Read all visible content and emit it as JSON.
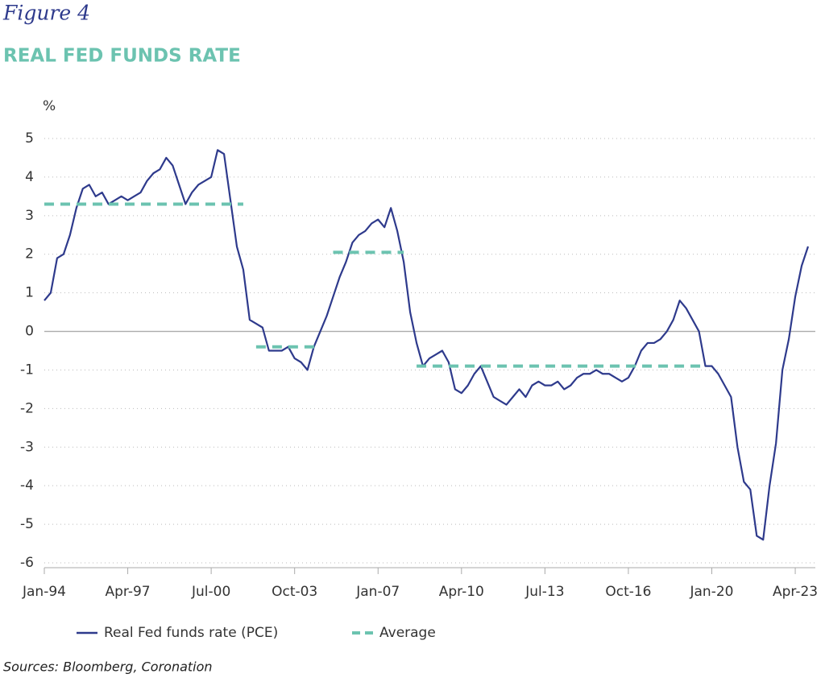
{
  "figure_label": "Figure 4",
  "chart_data": {
    "type": "line",
    "title": "REAL FED FUNDS RATE",
    "y_label": "%",
    "source": "Sources: Bloomberg, Coronation",
    "x": [
      "Jan-94",
      "Apr-94",
      "Jul-94",
      "Oct-94",
      "Jan-95",
      "Apr-95",
      "Jul-95",
      "Oct-95",
      "Jan-96",
      "Apr-96",
      "Jul-96",
      "Oct-96",
      "Jan-97",
      "Apr-97",
      "Jul-97",
      "Oct-97",
      "Jan-98",
      "Apr-98",
      "Jul-98",
      "Oct-98",
      "Jan-99",
      "Apr-99",
      "Jul-99",
      "Oct-99",
      "Jan-00",
      "Apr-00",
      "Jul-00",
      "Oct-00",
      "Jan-01",
      "Apr-01",
      "Jul-01",
      "Oct-01",
      "Jan-02",
      "Apr-02",
      "Jul-02",
      "Oct-02",
      "Jan-03",
      "Apr-03",
      "Jul-03",
      "Oct-03",
      "Jan-04",
      "Apr-04",
      "Jul-04",
      "Oct-04",
      "Jan-05",
      "Apr-05",
      "Jul-05",
      "Oct-05",
      "Jan-06",
      "Apr-06",
      "Jul-06",
      "Oct-06",
      "Jan-07",
      "Apr-07",
      "Jul-07",
      "Oct-07",
      "Jan-08",
      "Apr-08",
      "Jul-08",
      "Oct-08",
      "Jan-09",
      "Apr-09",
      "Jul-09",
      "Oct-09",
      "Jan-10",
      "Apr-10",
      "Jul-10",
      "Oct-10",
      "Jan-11",
      "Apr-11",
      "Jul-11",
      "Oct-11",
      "Jan-12",
      "Apr-12",
      "Jul-12",
      "Oct-12",
      "Jan-13",
      "Apr-13",
      "Jul-13",
      "Oct-13",
      "Jan-14",
      "Apr-14",
      "Jul-14",
      "Oct-14",
      "Jan-15",
      "Apr-15",
      "Jul-15",
      "Oct-15",
      "Jan-16",
      "Apr-16",
      "Jul-16",
      "Oct-16",
      "Jan-17",
      "Apr-17",
      "Jul-17",
      "Oct-17",
      "Jan-18",
      "Apr-18",
      "Jul-18",
      "Oct-18",
      "Jan-19",
      "Apr-19",
      "Jul-19",
      "Oct-19",
      "Jan-20",
      "Apr-20",
      "Jul-20",
      "Oct-20",
      "Jan-21",
      "Apr-21",
      "Jul-21",
      "Oct-21",
      "Jan-22",
      "Apr-22",
      "Jul-22",
      "Oct-22",
      "Jan-23",
      "Apr-23",
      "Jul-23",
      "Oct-23"
    ],
    "series": [
      {
        "name": "Real Fed funds rate (PCE)",
        "color": "#2e3a8c",
        "style": "solid",
        "values": [
          0.8,
          1.0,
          1.9,
          2.0,
          2.5,
          3.2,
          3.7,
          3.8,
          3.5,
          3.6,
          3.3,
          3.4,
          3.5,
          3.4,
          3.5,
          3.6,
          3.9,
          4.1,
          4.2,
          4.5,
          4.3,
          3.8,
          3.3,
          3.6,
          3.8,
          3.9,
          4.0,
          4.7,
          4.6,
          3.4,
          2.2,
          1.6,
          0.3,
          0.2,
          0.1,
          -0.5,
          -0.5,
          -0.5,
          -0.4,
          -0.7,
          -0.8,
          -1.0,
          -0.4,
          0.0,
          0.4,
          0.9,
          1.4,
          1.8,
          2.3,
          2.5,
          2.6,
          2.8,
          2.9,
          2.7,
          3.2,
          2.6,
          1.8,
          0.5,
          -0.3,
          -0.9,
          -0.7,
          -0.6,
          -0.5,
          -0.8,
          -1.5,
          -1.6,
          -1.4,
          -1.1,
          -0.9,
          -1.3,
          -1.7,
          -1.8,
          -1.9,
          -1.7,
          -1.5,
          -1.7,
          -1.4,
          -1.3,
          -1.4,
          -1.4,
          -1.3,
          -1.5,
          -1.4,
          -1.2,
          -1.1,
          -1.1,
          -1.0,
          -1.1,
          -1.1,
          -1.2,
          -1.3,
          -1.2,
          -0.9,
          -0.5,
          -0.3,
          -0.3,
          -0.2,
          0.0,
          0.3,
          0.8,
          0.6,
          0.3,
          0.0,
          -0.9,
          -0.9,
          -1.1,
          -1.4,
          -1.7,
          -3.0,
          -3.9,
          -4.1,
          -5.3,
          -5.4,
          -4.0,
          -2.9,
          -1.0,
          -0.2,
          0.9,
          1.7,
          2.2
        ]
      },
      {
        "name": "Average",
        "color": "#6cc3b0",
        "style": "dashed",
        "values": [
          3.3,
          3.3,
          3.3,
          3.3,
          3.3,
          3.3,
          3.3,
          3.3,
          3.3,
          3.3,
          3.3,
          3.3,
          3.3,
          3.3,
          3.3,
          3.3,
          3.3,
          3.3,
          3.3,
          3.3,
          3.3,
          3.3,
          3.3,
          3.3,
          3.3,
          3.3,
          3.3,
          3.3,
          3.3,
          3.3,
          3.3,
          3.3,
          null,
          -0.4,
          -0.4,
          -0.4,
          -0.4,
          -0.4,
          -0.4,
          -0.4,
          -0.4,
          -0.4,
          -0.4,
          -0.4,
          null,
          2.05,
          2.05,
          2.05,
          2.05,
          2.05,
          2.05,
          2.05,
          2.05,
          2.05,
          2.05,
          2.05,
          2.05,
          null,
          -0.9,
          -0.9,
          -0.9,
          -0.9,
          -0.9,
          -0.9,
          -0.9,
          -0.9,
          -0.9,
          -0.9,
          -0.9,
          -0.9,
          -0.9,
          -0.9,
          -0.9,
          -0.9,
          -0.9,
          -0.9,
          -0.9,
          -0.9,
          -0.9,
          -0.9,
          -0.9,
          -0.9,
          -0.9,
          -0.9,
          -0.9,
          -0.9,
          -0.9,
          -0.9,
          -0.9,
          -0.9,
          -0.9,
          -0.9,
          -0.9,
          -0.9,
          -0.9,
          -0.9,
          -0.9,
          -0.9,
          -0.9,
          -0.9,
          -0.9,
          -0.9,
          -0.9,
          -0.9,
          null,
          null,
          null,
          null,
          null,
          null,
          null,
          null,
          null,
          null,
          null,
          null,
          null,
          null,
          null,
          null
        ]
      }
    ],
    "xlim": [
      "Jan-94",
      "Oct-23"
    ],
    "xticks": [
      "Jan-94",
      "Apr-97",
      "Jul-00",
      "Oct-03",
      "Jan-07",
      "Apr-10",
      "Jul-13",
      "Oct-16",
      "Jan-20",
      "Apr-23"
    ],
    "ylim": [
      -6,
      5
    ],
    "yticks": [
      -6,
      -5,
      -4,
      -3,
      -2,
      -1,
      0,
      1,
      2,
      3,
      4,
      5
    ],
    "grid": true,
    "zero_line": true,
    "legend": "bottom"
  }
}
